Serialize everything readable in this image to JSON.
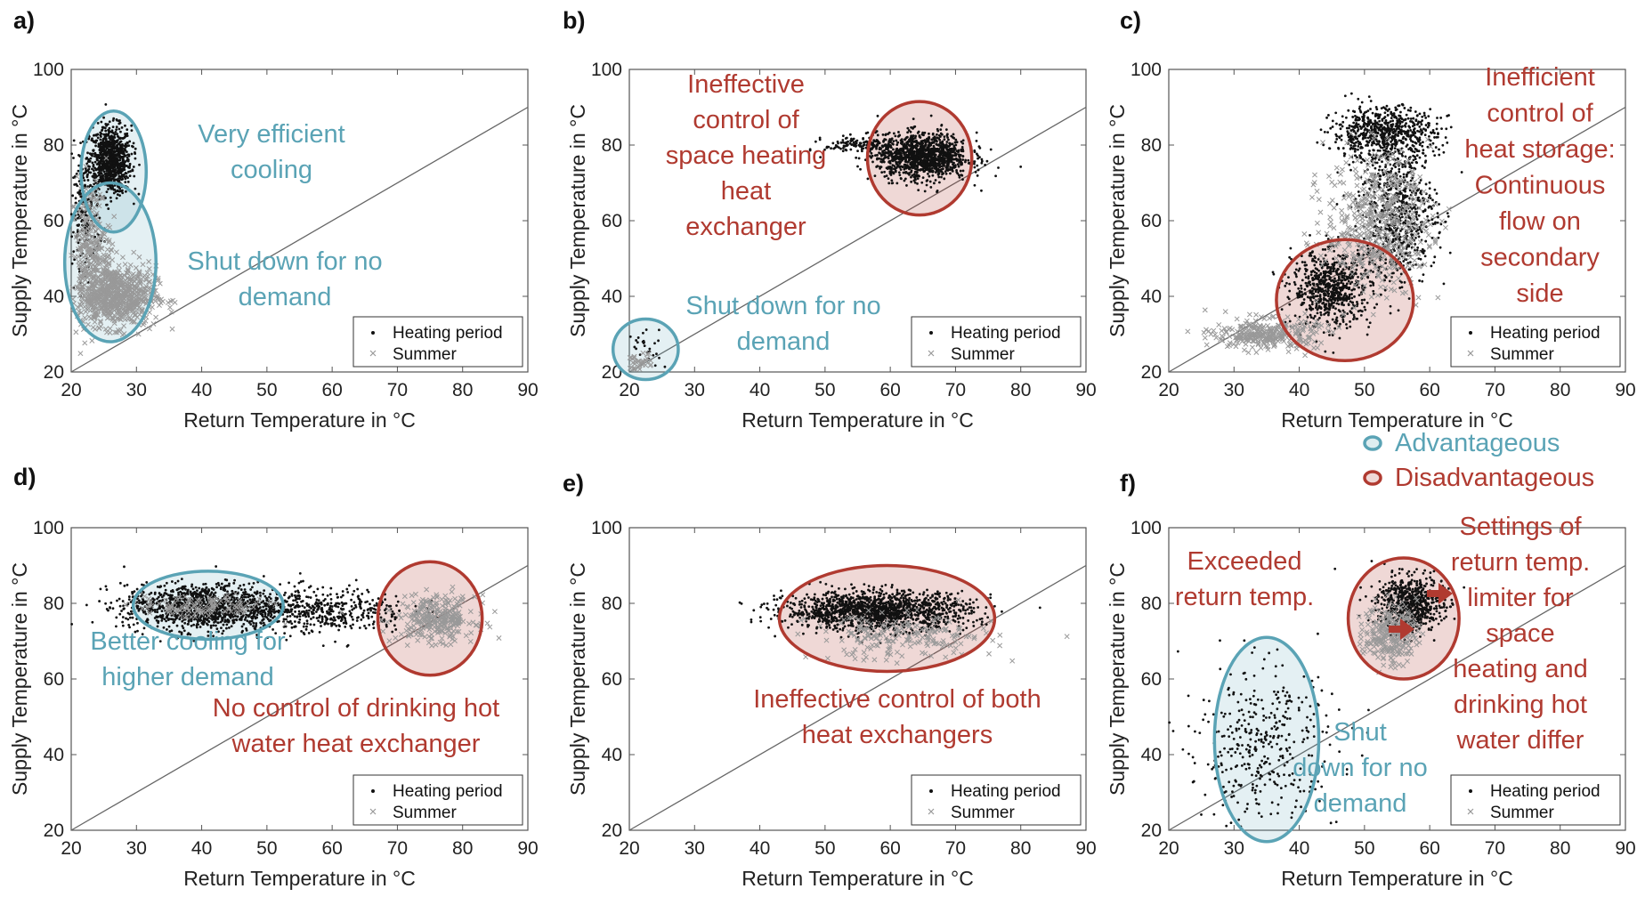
{
  "legend_key": {
    "items": [
      {
        "label": "Advantageous",
        "color": "#5aa3b5"
      },
      {
        "label": "Disadvantageous",
        "color": "#b03a30"
      }
    ]
  },
  "colors": {
    "advantageous": "#5aa3b5",
    "disadvantageous": "#b03a30",
    "heating": "#111111",
    "summer": "#999999"
  },
  "chart_data": [
    {
      "panel": "a)",
      "type": "scatter",
      "xlabel": "Return Temperature in °C",
      "ylabel": "Supply Temperature in °C",
      "xlim": [
        20,
        90
      ],
      "ylim": [
        20,
        100
      ],
      "xticks": [
        20,
        30,
        40,
        50,
        60,
        70,
        80,
        90
      ],
      "yticks": [
        20,
        40,
        60,
        80,
        100
      ],
      "reference_line": [
        [
          20,
          20
        ],
        [
          90,
          90
        ]
      ],
      "legend": [
        "Heating period",
        "Summer"
      ],
      "series": [
        {
          "name": "Heating period",
          "marker": "dot",
          "clusters": [
            {
              "x": 26,
              "y": 76,
              "sx": 1.6,
              "sy": 4.5,
              "n": 900
            },
            {
              "x": 22,
              "y": 62,
              "sx": 1.2,
              "sy": 7,
              "n": 200
            }
          ]
        },
        {
          "name": "Summer",
          "marker": "x",
          "clusters": [
            {
              "x": 27,
              "y": 40,
              "sx": 3,
              "sy": 4,
              "n": 700
            },
            {
              "x": 23,
              "y": 52,
              "sx": 1.5,
              "sy": 9,
              "n": 300
            }
          ]
        }
      ],
      "annotations": [
        {
          "text": [
            "Very efficient",
            "cooling"
          ],
          "kind": "advantageous",
          "ellipse": {
            "cx": 26.5,
            "cy": 73,
            "rx": 5,
            "ry": 16
          }
        },
        {
          "text": [
            "Shut down for no",
            "demand"
          ],
          "kind": "advantageous",
          "ellipse": {
            "cx": 26,
            "cy": 49,
            "rx": 7,
            "ry": 21
          }
        }
      ]
    },
    {
      "panel": "b)",
      "type": "scatter",
      "xlabel": "Return Temperature in °C",
      "ylabel": "Supply Temperature in °C",
      "xlim": [
        20,
        90
      ],
      "ylim": [
        20,
        100
      ],
      "xticks": [
        20,
        30,
        40,
        50,
        60,
        70,
        80,
        90
      ],
      "yticks": [
        20,
        40,
        60,
        80,
        100
      ],
      "reference_line": [
        [
          20,
          20
        ],
        [
          90,
          90
        ]
      ],
      "legend": [
        "Heating period",
        "Summer"
      ],
      "series": [
        {
          "name": "Heating period",
          "marker": "dot",
          "clusters": [
            {
              "x": 65,
              "y": 77,
              "sx": 3.5,
              "sy": 3,
              "n": 1200
            },
            {
              "x": 56,
              "y": 80,
              "sx": 3,
              "sy": 1.2,
              "n": 150
            },
            {
              "x": 22,
              "y": 26,
              "sx": 1.5,
              "sy": 4,
              "n": 30
            }
          ]
        },
        {
          "name": "Summer",
          "marker": "x",
          "clusters": [
            {
              "x": 21.5,
              "y": 22,
              "sx": 1,
              "sy": 1.5,
              "n": 40
            }
          ]
        }
      ],
      "annotations": [
        {
          "text": [
            "Ineffective",
            "control of",
            "space heating",
            "heat",
            "exchanger"
          ],
          "kind": "disadvantageous",
          "ellipse": {
            "cx": 64.5,
            "cy": 76.5,
            "rx": 8,
            "ry": 15
          }
        },
        {
          "text": [
            "Shut down for no",
            "demand"
          ],
          "kind": "advantageous",
          "ellipse": {
            "cx": 22.5,
            "cy": 26,
            "rx": 5,
            "ry": 8
          }
        }
      ]
    },
    {
      "panel": "c)",
      "type": "scatter",
      "xlabel": "Return Temperature in °C",
      "ylabel": "Supply Temperature in °C",
      "xlim": [
        20,
        90
      ],
      "ylim": [
        20,
        100
      ],
      "xticks": [
        20,
        30,
        40,
        50,
        60,
        70,
        80,
        90
      ],
      "yticks": [
        20,
        40,
        60,
        80,
        100
      ],
      "reference_line": [
        [
          20,
          20
        ],
        [
          90,
          90
        ]
      ],
      "legend": [
        "Heating period",
        "Summer"
      ],
      "series": [
        {
          "name": "Heating period",
          "marker": "dot",
          "clusters": [
            {
              "x": 53,
              "y": 83,
              "sx": 4,
              "sy": 3.5,
              "n": 700
            },
            {
              "x": 45,
              "y": 42,
              "sx": 3,
              "sy": 5,
              "n": 700
            },
            {
              "x": 55,
              "y": 62,
              "sx": 3,
              "sy": 9,
              "n": 700
            }
          ]
        },
        {
          "name": "Summer",
          "marker": "x",
          "clusters": [
            {
              "x": 35,
              "y": 30,
              "sx": 4,
              "sy": 2,
              "n": 300
            },
            {
              "x": 52,
              "y": 60,
              "sx": 4,
              "sy": 9,
              "n": 500
            }
          ]
        }
      ],
      "annotations": [
        {
          "text": [
            "Inefficient",
            "control of",
            "heat storage:",
            "Continuous",
            "flow on",
            "secondary",
            "side"
          ],
          "kind": "disadvantageous",
          "ellipse": {
            "cx": 47,
            "cy": 39,
            "rx": 10.5,
            "ry": 16
          }
        }
      ]
    },
    {
      "panel": "d)",
      "type": "scatter",
      "xlabel": "Return Temperature in °C",
      "ylabel": "Supply Temperature in °C",
      "xlim": [
        20,
        90
      ],
      "ylim": [
        20,
        100
      ],
      "xticks": [
        20,
        30,
        40,
        50,
        60,
        70,
        80,
        90
      ],
      "yticks": [
        20,
        40,
        60,
        80,
        100
      ],
      "reference_line": [
        [
          20,
          20
        ],
        [
          90,
          90
        ]
      ],
      "legend": [
        "Heating period",
        "Summer"
      ],
      "series": [
        {
          "name": "Heating period",
          "marker": "dot",
          "clusters": [
            {
              "x": 40,
              "y": 79,
              "sx": 6,
              "sy": 3,
              "n": 1200
            },
            {
              "x": 58,
              "y": 78,
              "sx": 7,
              "sy": 3,
              "n": 500
            }
          ]
        },
        {
          "name": "Summer",
          "marker": "x",
          "clusters": [
            {
              "x": 76,
              "y": 76,
              "sx": 3,
              "sy": 3,
              "n": 300
            },
            {
              "x": 40,
              "y": 79,
              "sx": 5,
              "sy": 1.5,
              "n": 120
            }
          ]
        }
      ],
      "annotations": [
        {
          "text": [
            "Better cooling for",
            "higher demand"
          ],
          "kind": "advantageous",
          "ellipse": {
            "cx": 41,
            "cy": 79.5,
            "rx": 11.5,
            "ry": 9
          }
        },
        {
          "text": [
            "No control of drinking hot",
            "water heat exchanger"
          ],
          "kind": "disadvantageous",
          "ellipse": {
            "cx": 75,
            "cy": 76,
            "rx": 8,
            "ry": 15
          }
        }
      ]
    },
    {
      "panel": "e)",
      "type": "scatter",
      "xlabel": "Return Temperature in °C",
      "ylabel": "Supply Temperature in °C",
      "xlim": [
        20,
        90
      ],
      "ylim": [
        20,
        100
      ],
      "xticks": [
        20,
        30,
        40,
        50,
        60,
        70,
        80,
        90
      ],
      "yticks": [
        20,
        40,
        60,
        80,
        100
      ],
      "reference_line": [
        [
          20,
          20
        ],
        [
          90,
          90
        ]
      ],
      "legend": [
        "Heating period",
        "Summer"
      ],
      "series": [
        {
          "name": "Heating period",
          "marker": "dot",
          "clusters": [
            {
              "x": 58,
              "y": 78,
              "sx": 7,
              "sy": 2.5,
              "n": 1500
            }
          ]
        },
        {
          "name": "Summer",
          "marker": "x",
          "clusters": [
            {
              "x": 62,
              "y": 71,
              "sx": 7,
              "sy": 3,
              "n": 200
            }
          ]
        }
      ],
      "annotations": [
        {
          "text": [
            "Ineffective control of both",
            "heat exchangers"
          ],
          "kind": "disadvantageous",
          "ellipse": {
            "cx": 59.5,
            "cy": 76,
            "rx": 16.5,
            "ry": 14
          }
        }
      ]
    },
    {
      "panel": "f)",
      "type": "scatter",
      "xlabel": "Return Temperature in °C",
      "ylabel": "Supply Temperature in °C",
      "xlim": [
        20,
        90
      ],
      "ylim": [
        20,
        100
      ],
      "xticks": [
        20,
        30,
        40,
        50,
        60,
        70,
        80,
        90
      ],
      "yticks": [
        20,
        40,
        60,
        80,
        100
      ],
      "reference_line": [
        [
          20,
          20
        ],
        [
          90,
          90
        ]
      ],
      "legend": [
        "Heating period",
        "Summer"
      ],
      "series": [
        {
          "name": "Heating period",
          "marker": "dot",
          "clusters": [
            {
              "x": 57,
              "y": 80,
              "sx": 2.5,
              "sy": 3.5,
              "n": 700
            },
            {
              "x": 34,
              "y": 42,
              "sx": 6,
              "sy": 11,
              "n": 400
            }
          ]
        },
        {
          "name": "Summer",
          "marker": "x",
          "clusters": [
            {
              "x": 54,
              "y": 72,
              "sx": 2,
              "sy": 4,
              "n": 250
            }
          ]
        }
      ],
      "annotations": [
        {
          "text": [
            "Exceeded",
            "return temp."
          ],
          "kind": "disadvantageous",
          "ellipse": {
            "cx": 56,
            "cy": 76,
            "rx": 8.5,
            "ry": 16
          }
        },
        {
          "text": [
            "Settings of",
            "return temp.",
            "limiter for",
            "space",
            "heating and",
            "drinking hot",
            "water differ"
          ],
          "kind": "disadvantageous",
          "ellipse": null
        },
        {
          "text": [
            "Shut",
            "down for no",
            "demand"
          ],
          "kind": "advantageous",
          "ellipse": {
            "cx": 35,
            "cy": 44,
            "rx": 8,
            "ry": 27
          }
        }
      ]
    }
  ]
}
